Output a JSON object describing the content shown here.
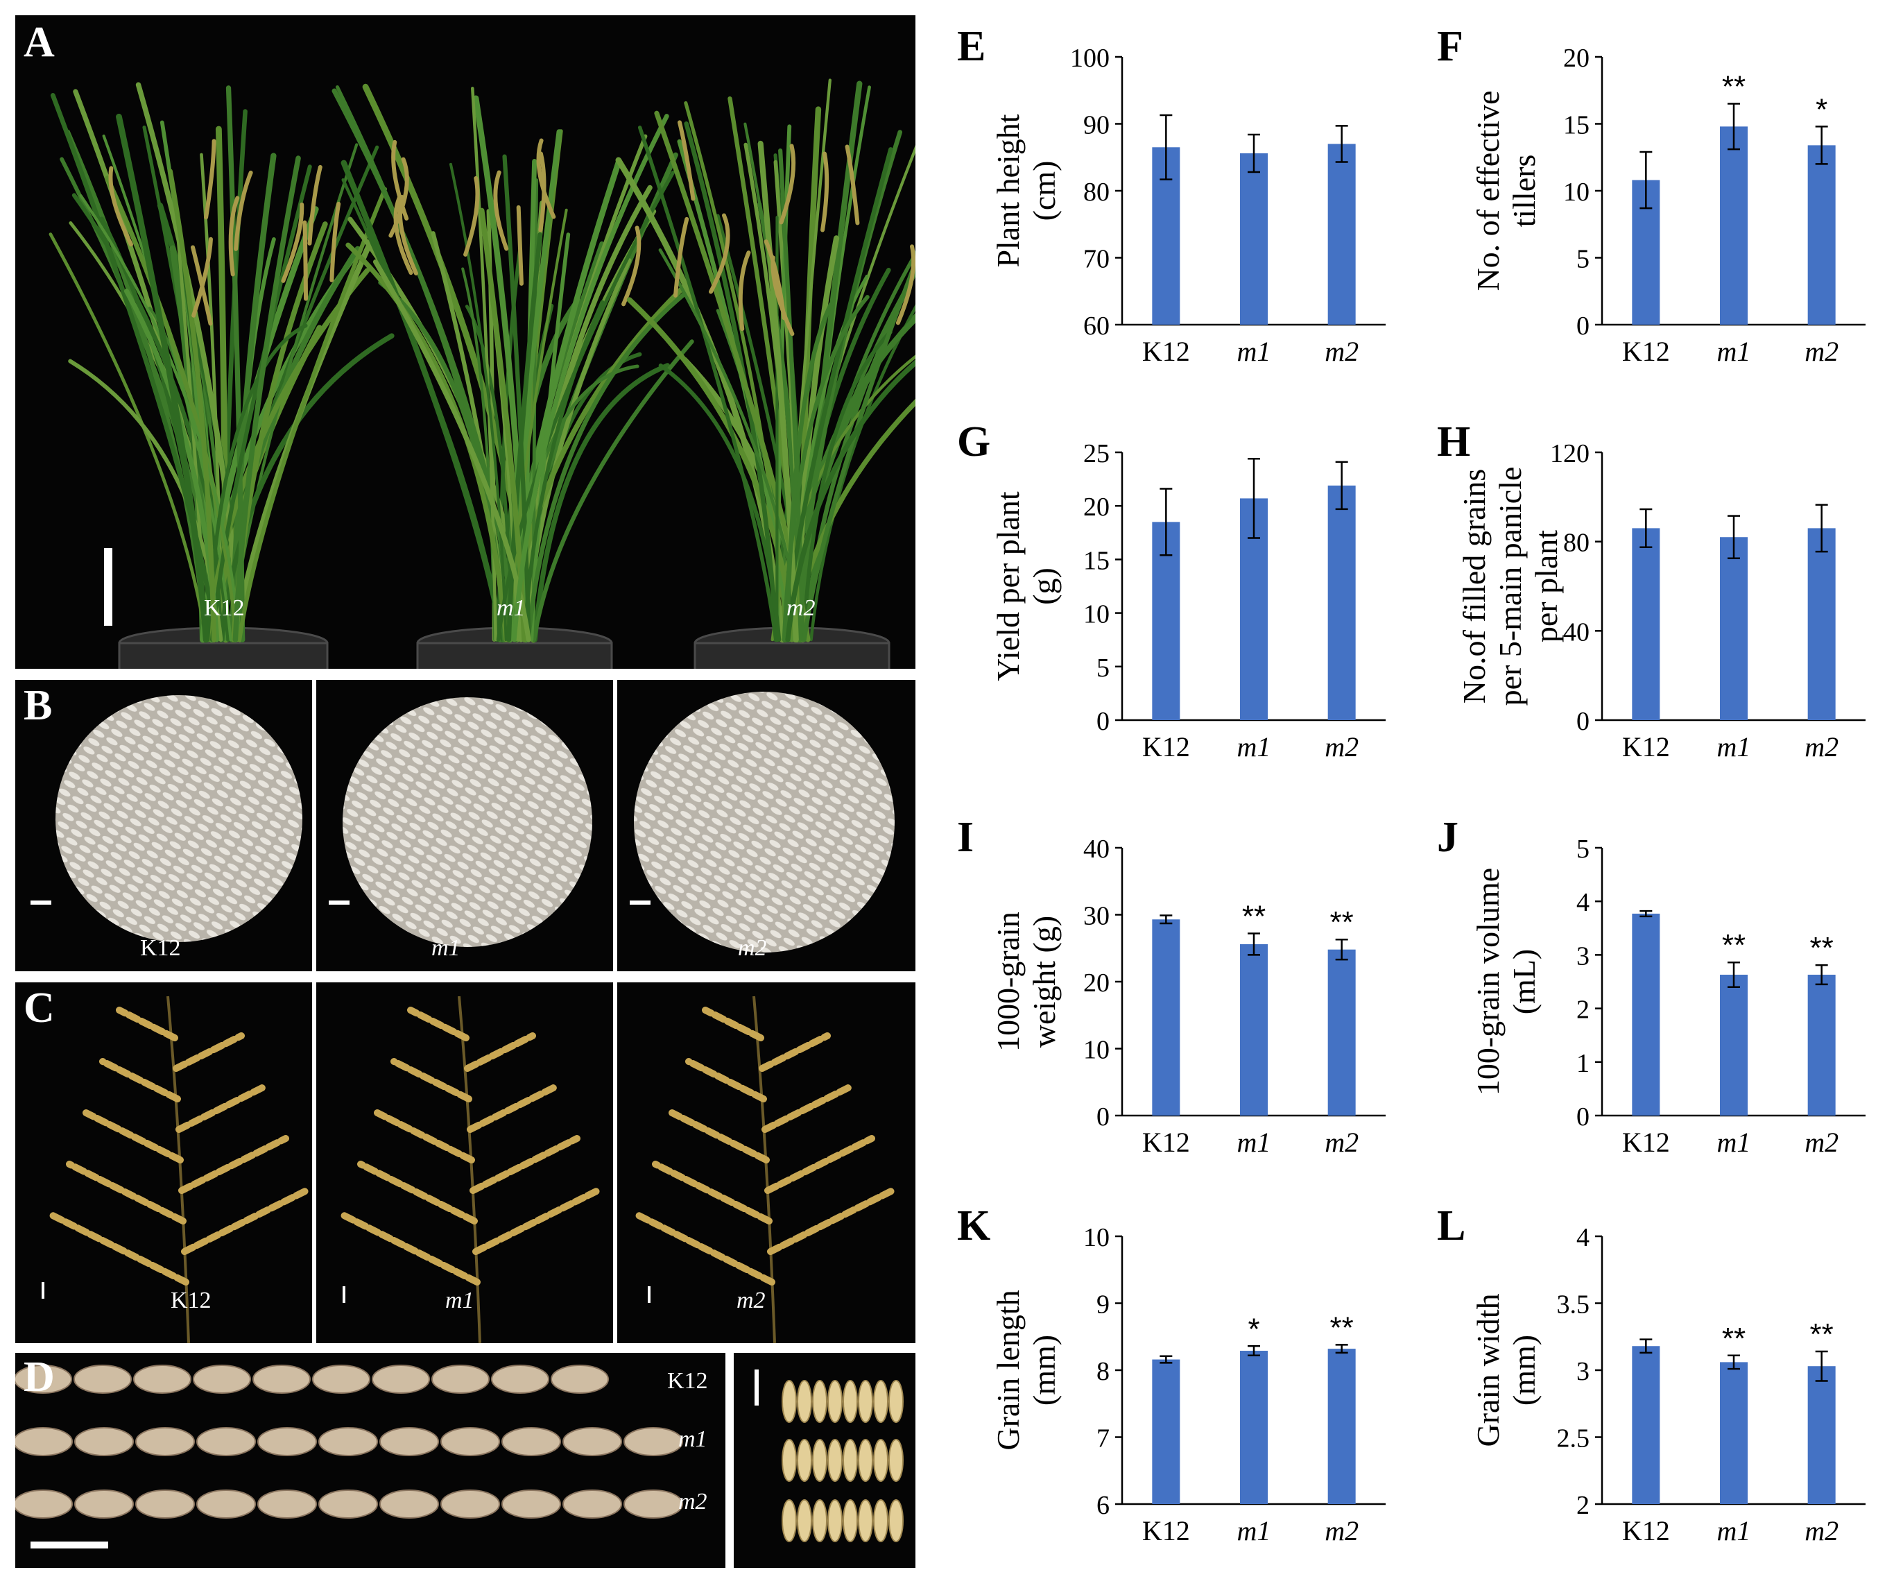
{
  "photos": {
    "A": {
      "letter": "A",
      "labels": [
        "K12",
        "m1",
        "m2"
      ]
    },
    "B": {
      "letter": "B",
      "labels": [
        "K12",
        "m1",
        "m2"
      ]
    },
    "C": {
      "letter": "C",
      "labels": [
        "K12",
        "m1",
        "m2"
      ]
    },
    "D": {
      "letter": "D",
      "labels": [
        "K12",
        "m1",
        "m2"
      ]
    }
  },
  "colors": {
    "bar": "#4472c4",
    "photo_bg": "#050505"
  },
  "chart_data": [
    {
      "id": "E",
      "letter": "E",
      "type": "bar",
      "categories": [
        "K12",
        "m1",
        "m2"
      ],
      "values": [
        86.5,
        85.6,
        87.0
      ],
      "errors": [
        4.8,
        2.8,
        2.7
      ],
      "sig": [
        "",
        "",
        ""
      ],
      "ylim": [
        60,
        100
      ],
      "ticks": [
        60,
        70,
        80,
        90,
        100
      ],
      "ylabel": [
        "Plant height",
        "(cm)"
      ],
      "xlabel": "",
      "title": ""
    },
    {
      "id": "F",
      "letter": "F",
      "type": "bar",
      "categories": [
        "K12",
        "m1",
        "m2"
      ],
      "values": [
        10.8,
        14.8,
        13.4
      ],
      "errors": [
        2.1,
        1.7,
        1.4
      ],
      "sig": [
        "",
        "**",
        "*"
      ],
      "ylim": [
        0,
        20
      ],
      "ticks": [
        0,
        5,
        10,
        15,
        20
      ],
      "ylabel": [
        "No. of effective",
        "tillers"
      ],
      "xlabel": "",
      "title": ""
    },
    {
      "id": "G",
      "letter": "G",
      "type": "bar",
      "categories": [
        "K12",
        "m1",
        "m2"
      ],
      "values": [
        18.5,
        20.7,
        21.9
      ],
      "errors": [
        3.1,
        3.7,
        2.2
      ],
      "sig": [
        "",
        "",
        ""
      ],
      "ylim": [
        0,
        25
      ],
      "ticks": [
        0,
        5,
        10,
        15,
        20,
        25
      ],
      "ylabel": [
        "Yield per plant",
        "(g)"
      ],
      "xlabel": "",
      "title": ""
    },
    {
      "id": "H",
      "letter": "H",
      "type": "bar",
      "categories": [
        "K12",
        "m1",
        "m2"
      ],
      "values": [
        86,
        82,
        86
      ],
      "errors": [
        8.5,
        9.5,
        10.5
      ],
      "sig": [
        "",
        "",
        ""
      ],
      "ylim": [
        0,
        120
      ],
      "ticks": [
        0,
        40,
        80,
        120
      ],
      "ylabel": [
        "No.of filled grains",
        "per 5-main panicle",
        "per plant"
      ],
      "xlabel": "",
      "title": ""
    },
    {
      "id": "I",
      "letter": "I",
      "type": "bar",
      "categories": [
        "K12",
        "m1",
        "m2"
      ],
      "values": [
        29.3,
        25.6,
        24.8
      ],
      "errors": [
        0.6,
        1.6,
        1.5
      ],
      "sig": [
        "",
        "**",
        "**"
      ],
      "ylim": [
        0,
        40
      ],
      "ticks": [
        0,
        10,
        20,
        30,
        40
      ],
      "ylabel": [
        "1000-grain",
        "weight (g)"
      ],
      "xlabel": "",
      "title": ""
    },
    {
      "id": "J",
      "letter": "J",
      "type": "bar",
      "categories": [
        "K12",
        "m1",
        "m2"
      ],
      "values": [
        3.77,
        2.63,
        2.63
      ],
      "errors": [
        0.05,
        0.23,
        0.18
      ],
      "sig": [
        "",
        "**",
        "**"
      ],
      "ylim": [
        0,
        5
      ],
      "ticks": [
        0,
        1,
        2,
        3,
        4,
        5
      ],
      "ylabel": [
        "100-grain volume",
        "(mL)"
      ],
      "xlabel": "",
      "title": ""
    },
    {
      "id": "K",
      "letter": "K",
      "type": "bar",
      "categories": [
        "K12",
        "m1",
        "m2"
      ],
      "values": [
        8.16,
        8.29,
        8.32
      ],
      "errors": [
        0.05,
        0.07,
        0.06
      ],
      "sig": [
        "",
        "*",
        "**"
      ],
      "ylim": [
        6,
        10
      ],
      "ticks": [
        6,
        7,
        8,
        9,
        10
      ],
      "ylabel": [
        "Grain length",
        "(mm)"
      ],
      "xlabel": "",
      "title": ""
    },
    {
      "id": "L",
      "letter": "L",
      "type": "bar",
      "categories": [
        "K12",
        "m1",
        "m2"
      ],
      "values": [
        3.18,
        3.06,
        3.03
      ],
      "errors": [
        0.05,
        0.05,
        0.11
      ],
      "sig": [
        "",
        "**",
        "**"
      ],
      "ylim": [
        2,
        4
      ],
      "ticks": [
        2,
        2.5,
        3,
        3.5,
        4
      ],
      "ylabel": [
        "Grain width",
        "(mm)"
      ],
      "xlabel": "",
      "title": ""
    }
  ]
}
